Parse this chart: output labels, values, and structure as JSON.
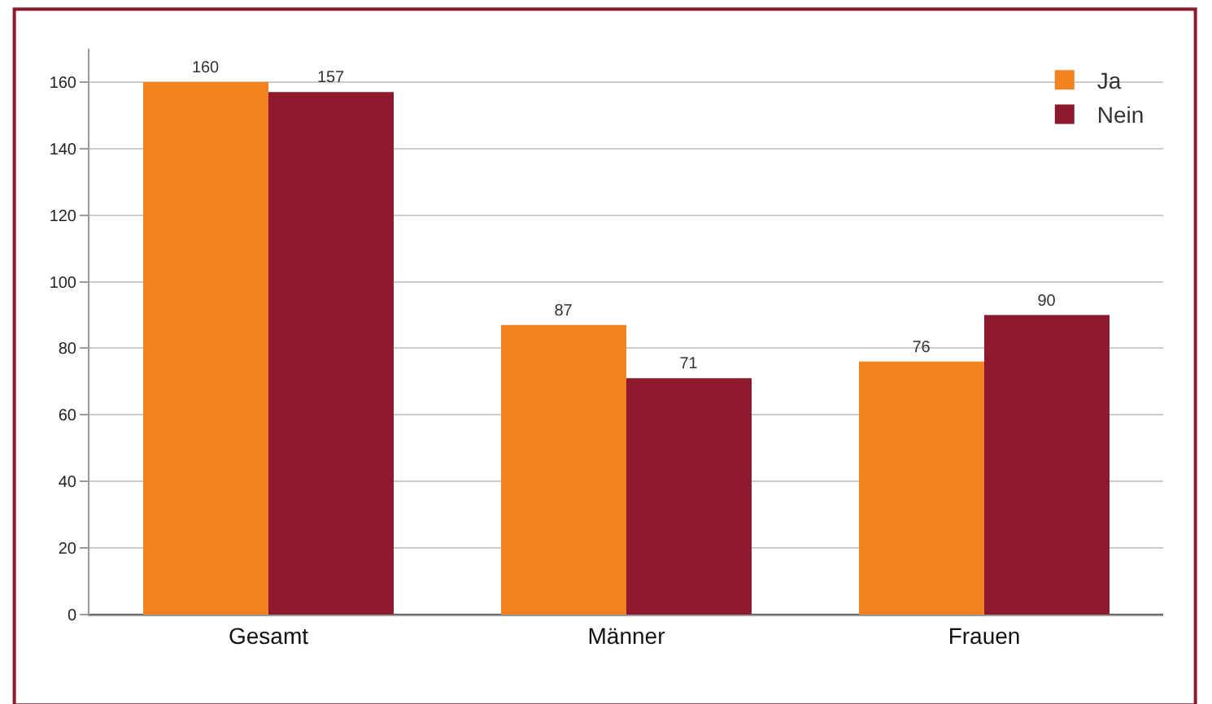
{
  "chart_data": {
    "type": "bar",
    "categories": [
      "Gesamt",
      "Männer",
      "Frauen"
    ],
    "series": [
      {
        "name": "Ja",
        "color": "#f58220",
        "values": [
          160,
          87,
          76
        ]
      },
      {
        "name": "Nein",
        "color": "#8c1a2c",
        "values": [
          157,
          71,
          90
        ]
      }
    ],
    "ylim": [
      0,
      170
    ],
    "yticks": [
      0,
      20,
      40,
      60,
      80,
      100,
      120,
      140,
      160
    ],
    "grid": "y",
    "legend": "top right",
    "data_labels": true
  }
}
